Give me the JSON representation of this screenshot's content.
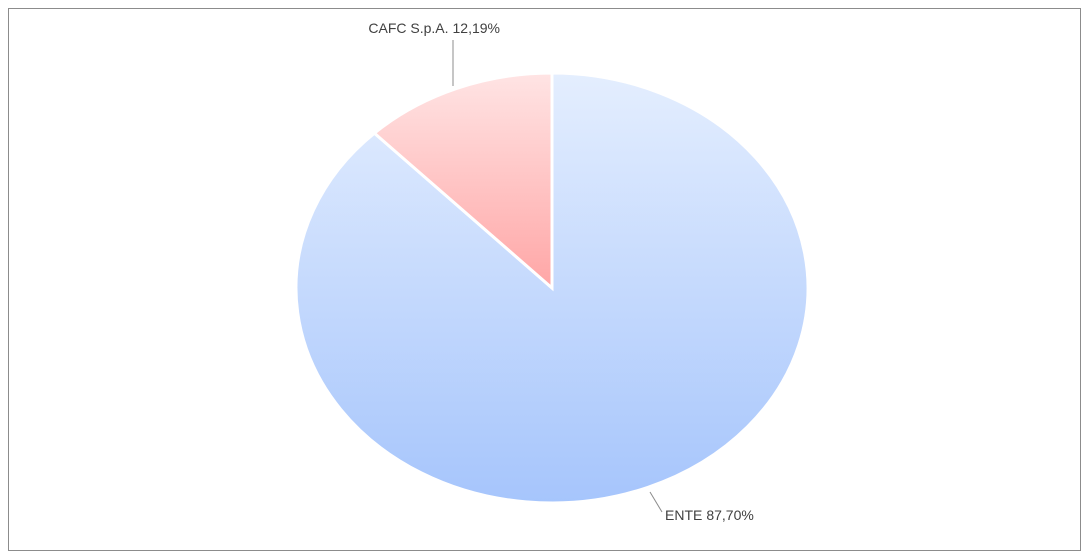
{
  "chart_data": {
    "type": "pie",
    "categories": [
      "ENTE",
      "CAFC S.p.A."
    ],
    "values": [
      87.7,
      12.19
    ],
    "value_labels": [
      "87,70%",
      "12,19%"
    ],
    "colors": [
      "#a6c5fc",
      "#ffa6a6"
    ],
    "start": "top",
    "direction": "clockwise"
  }
}
